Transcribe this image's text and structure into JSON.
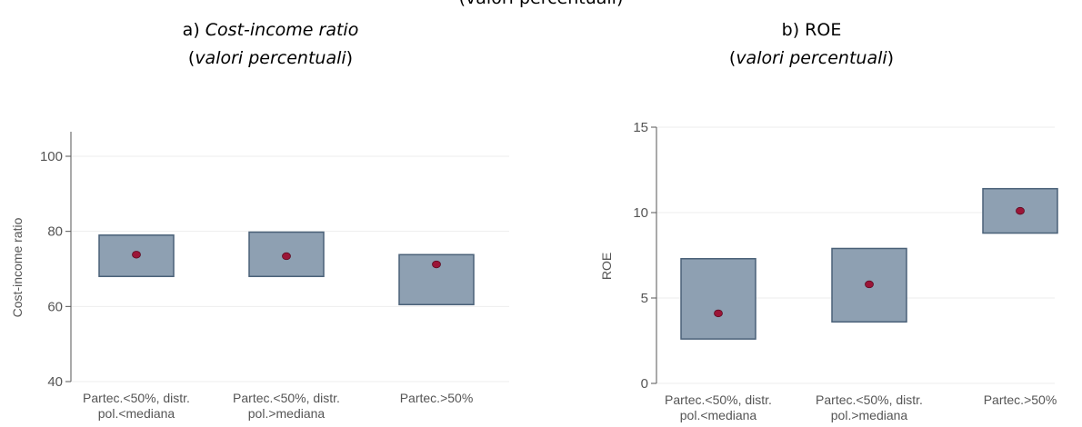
{
  "header_fragment": "(valori percentuali)",
  "panels": [
    {
      "title_prefix": "a) ",
      "title_main": "Cost-income ratio",
      "title_main_italic": true,
      "subtitle_open": "(",
      "subtitle_main": "valori percentuali",
      "subtitle_close": ")"
    },
    {
      "title_prefix": "b) ",
      "title_main": "ROE",
      "title_main_italic": false,
      "subtitle_open": "(",
      "subtitle_main": "valori percentuali",
      "subtitle_close": ")"
    }
  ],
  "colors": {
    "box_fill": "#8ea0b2",
    "box_stroke": "#4a6178",
    "point": "#9b1537",
    "axis": "#555555",
    "grid": "#eeeeee",
    "text": "#555555"
  },
  "chart_data": [
    {
      "type": "box",
      "ylabel": "Cost-income ratio",
      "ylim": [
        40,
        100
      ],
      "yticks": [
        40,
        60,
        80,
        100
      ],
      "grid": true,
      "categories": [
        [
          "Partec.<50%, distr.",
          "pol.<mediana"
        ],
        [
          "Partec.<50%, distr.",
          "pol.>mediana"
        ],
        [
          "Partec.>50%"
        ]
      ],
      "boxes": [
        {
          "low": 68,
          "high": 79,
          "point": 73.8
        },
        {
          "low": 68,
          "high": 79.8,
          "point": 73.4
        },
        {
          "low": 60.5,
          "high": 73.8,
          "point": 71.2
        }
      ]
    },
    {
      "type": "box",
      "ylabel": "ROE",
      "ylim": [
        0,
        15
      ],
      "yticks": [
        0,
        5,
        10,
        15
      ],
      "grid": true,
      "categories": [
        [
          "Partec.<50%, distr.",
          "pol.<mediana"
        ],
        [
          "Partec.<50%, distr.",
          "pol.>mediana"
        ],
        [
          "Partec.>50%"
        ]
      ],
      "boxes": [
        {
          "low": 2.6,
          "high": 7.3,
          "point": 4.1
        },
        {
          "low": 3.6,
          "high": 7.9,
          "point": 5.8
        },
        {
          "low": 8.8,
          "high": 11.4,
          "point": 10.1
        }
      ]
    }
  ]
}
